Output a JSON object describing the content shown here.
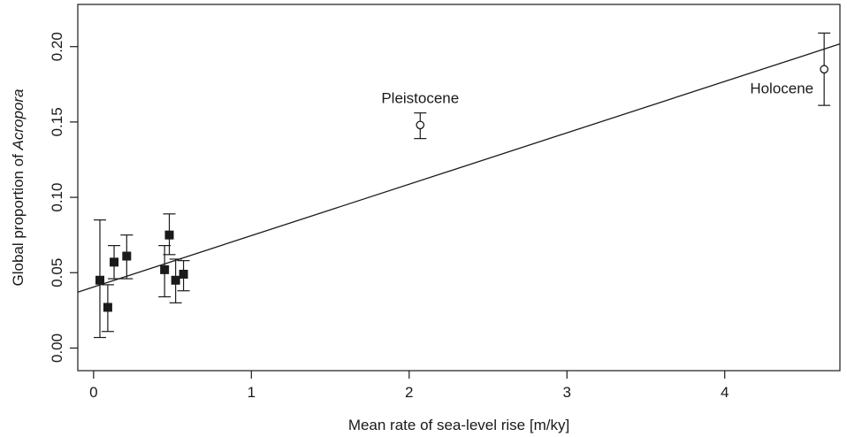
{
  "chart_data": {
    "type": "scatter",
    "xlabel": "Mean rate of sea-level rise [m/ky]",
    "ylabel_prefix": "Global proportion of ",
    "ylabel_italic": "Acropora",
    "xlim": [
      -0.1,
      4.73
    ],
    "ylim": [
      -0.015,
      0.228
    ],
    "x_ticks": [
      0,
      1,
      2,
      3,
      4
    ],
    "x_tick_labels": [
      "0",
      "1",
      "2",
      "3",
      "4"
    ],
    "y_ticks": [
      0.0,
      0.05,
      0.1,
      0.15,
      0.2
    ],
    "y_tick_labels": [
      "0.00",
      "0.05",
      "0.10",
      "0.15",
      "0.20"
    ],
    "grid": false,
    "series": [
      {
        "marker": "filled-square",
        "points": [
          {
            "x": 0.04,
            "y": 0.045,
            "lo": 0.007,
            "hi": 0.085
          },
          {
            "x": 0.09,
            "y": 0.027,
            "lo": 0.011,
            "hi": 0.042
          },
          {
            "x": 0.13,
            "y": 0.057,
            "lo": 0.046,
            "hi": 0.068
          },
          {
            "x": 0.21,
            "y": 0.061,
            "lo": 0.046,
            "hi": 0.075
          },
          {
            "x": 0.45,
            "y": 0.052,
            "lo": 0.034,
            "hi": 0.068
          },
          {
            "x": 0.48,
            "y": 0.075,
            "lo": 0.062,
            "hi": 0.089
          },
          {
            "x": 0.52,
            "y": 0.045,
            "lo": 0.03,
            "hi": 0.059
          },
          {
            "x": 0.57,
            "y": 0.049,
            "lo": 0.038,
            "hi": 0.058
          }
        ]
      },
      {
        "marker": "open-circle",
        "points": [
          {
            "x": 2.07,
            "y": 0.148,
            "lo": 0.139,
            "hi": 0.156,
            "label": "Pleistocene"
          },
          {
            "x": 4.63,
            "y": 0.185,
            "lo": 0.161,
            "hi": 0.209,
            "label": "Holocene"
          }
        ]
      }
    ],
    "fit_line": {
      "intercept": 0.0405,
      "slope": 0.0341
    }
  }
}
